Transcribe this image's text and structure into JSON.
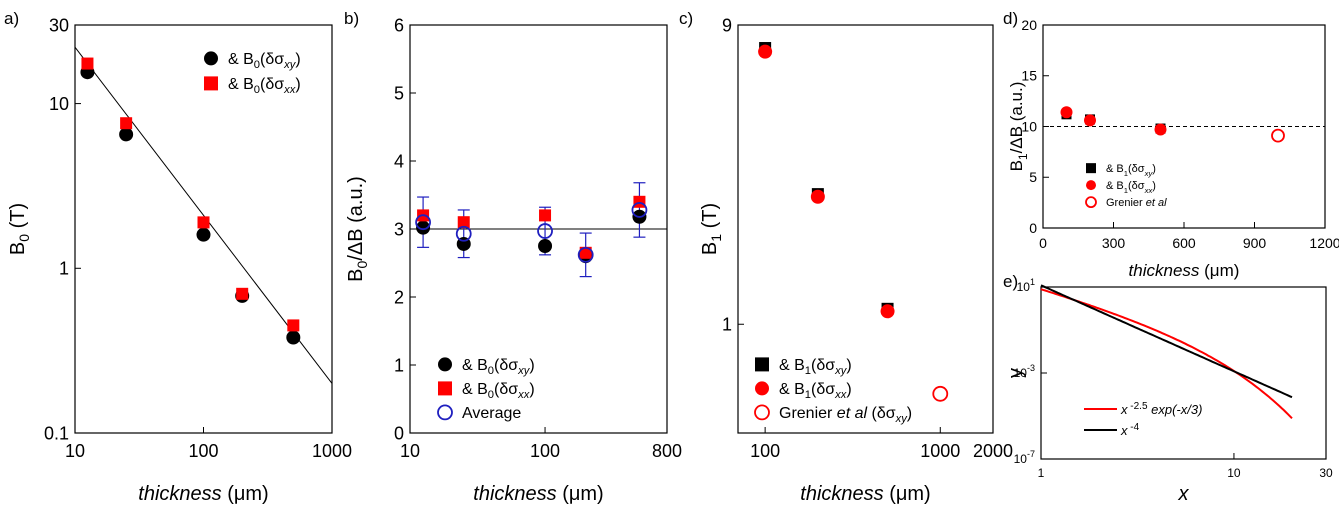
{
  "chart_data": [
    {
      "id": "a",
      "panel_label": "a)",
      "type": "scatter",
      "xscale": "log",
      "yscale": "log",
      "xlim": [
        10,
        1000
      ],
      "ylim": [
        0.1,
        30
      ],
      "xticks": [
        10,
        100,
        1000
      ],
      "xtick_labels": [
        "10",
        "100",
        "1000"
      ],
      "yticks": [
        0.1,
        1,
        10,
        30
      ],
      "ytick_labels": [
        "0.1",
        "1",
        "10",
        "30"
      ],
      "xlabel": {
        "italic": "thickness",
        "rest": " (μm)"
      },
      "ylabel": {
        "main": "B",
        "sub": "0",
        "rest": " (T)"
      },
      "legend_position": "top-right",
      "series": [
        {
          "name": "& B0(δσxy)",
          "legend_prefix": "& B",
          "legend_sub": "0",
          "legend_paren": "(δσ",
          "legend_psub": "xy",
          "marker": "circle",
          "color": "#000000",
          "x": [
            12.5,
            25,
            100,
            200,
            500
          ],
          "y": [
            15.5,
            6.5,
            1.6,
            0.68,
            0.38
          ]
        },
        {
          "name": "& B0(δσxx)",
          "legend_prefix": "& B",
          "legend_sub": "0",
          "legend_paren": "(δσ",
          "legend_psub": "xx",
          "marker": "square",
          "color": "#ff0000",
          "x": [
            12.5,
            25,
            100,
            200,
            500
          ],
          "y": [
            17.5,
            7.6,
            1.9,
            0.7,
            0.45
          ]
        }
      ],
      "fit_line": {
        "x": [
          10,
          1000
        ],
        "y": [
          22,
          0.2
        ],
        "color": "#000000"
      }
    },
    {
      "id": "b",
      "panel_label": "b)",
      "type": "scatter",
      "xscale": "log",
      "yscale": "linear",
      "xlim": [
        10,
        800
      ],
      "ylim": [
        0,
        6
      ],
      "xticks": [
        10,
        100,
        800
      ],
      "xtick_labels": [
        "10",
        "100",
        "800"
      ],
      "yticks": [
        0,
        1,
        2,
        3,
        4,
        5,
        6
      ],
      "ytick_labels": [
        "0",
        "1",
        "2",
        "3",
        "4",
        "5",
        "6"
      ],
      "xlabel": {
        "italic": "thickness",
        "rest": " (μm)"
      },
      "ylabel": {
        "main": "B",
        "sub": "0",
        "rest": "/ΔB (a.u.)"
      },
      "legend_position": "bottom-center",
      "series": [
        {
          "name": "& B0(δσxy)",
          "legend_prefix": "& B",
          "legend_sub": "0",
          "legend_paren": "(δσ",
          "legend_psub": "xy",
          "marker": "circle",
          "color": "#000000",
          "x": [
            12.5,
            25,
            100,
            200,
            500
          ],
          "y": [
            3.02,
            2.78,
            2.75,
            2.6,
            3.18
          ]
        },
        {
          "name": "& B0(δσxx)",
          "legend_prefix": "& B",
          "legend_sub": "0",
          "legend_paren": "(δσ",
          "legend_psub": "xx",
          "marker": "square",
          "color": "#ff0000",
          "x": [
            12.5,
            25,
            100,
            200,
            500
          ],
          "y": [
            3.2,
            3.1,
            3.2,
            2.65,
            3.4
          ]
        },
        {
          "name": "Average",
          "legend_text": "Average",
          "marker": "open-circle",
          "color": "#1f1fbf",
          "x": [
            12.5,
            25,
            100,
            200,
            500
          ],
          "y": [
            3.1,
            2.93,
            2.97,
            2.62,
            3.28
          ],
          "err": [
            0.37,
            0.35,
            0.35,
            0.32,
            0.4
          ]
        }
      ],
      "hline": {
        "y": 3.0,
        "color": "#000000"
      }
    },
    {
      "id": "c",
      "panel_label": "c)",
      "type": "scatter",
      "xscale": "log",
      "yscale": "log",
      "xlim": [
        70,
        2000
      ],
      "ylim": [
        0.45,
        9
      ],
      "xticks": [
        100,
        1000,
        2000
      ],
      "xtick_labels": [
        "100",
        "1000",
        "2000"
      ],
      "yticks": [
        1,
        9
      ],
      "ytick_labels": [
        "1",
        "9"
      ],
      "xlabel": {
        "italic": "thickness",
        "rest": " (μm)"
      },
      "ylabel": {
        "main": "B",
        "sub": "1",
        "rest": " (T)"
      },
      "legend_position": "bottom-left",
      "series": [
        {
          "name": "& B1(δσxy)",
          "legend_prefix": "& B",
          "legend_sub": "1",
          "legend_paren": "(δσ",
          "legend_psub": "xy",
          "marker": "square",
          "color": "#000000",
          "x": [
            100,
            200,
            500
          ],
          "y": [
            7.6,
            2.6,
            1.12
          ]
        },
        {
          "name": "& B1(δσxx)",
          "legend_prefix": "& B",
          "legend_sub": "1",
          "legend_paren": "(δσ",
          "legend_psub": "xx",
          "marker": "circle",
          "color": "#ff0000",
          "x": [
            100,
            200,
            500
          ],
          "y": [
            7.4,
            2.55,
            1.1
          ]
        },
        {
          "name": "Grenier et al (δσxy)",
          "legend_pre": "Grenier ",
          "legend_ital": "et al",
          "legend_post": " (δσ",
          "legend_psub": "xy",
          "marker": "open-circle",
          "color": "#ff0000",
          "x": [
            1000
          ],
          "y": [
            0.6
          ]
        }
      ]
    },
    {
      "id": "d",
      "panel_label": "d)",
      "type": "scatter",
      "xscale": "linear",
      "yscale": "linear",
      "xlim": [
        0,
        1200
      ],
      "ylim": [
        0,
        20
      ],
      "xticks": [
        0,
        300,
        600,
        900,
        1200
      ],
      "xtick_labels": [
        "0",
        "300",
        "600",
        "900",
        "1200"
      ],
      "yticks": [
        0,
        5,
        10,
        15,
        20
      ],
      "ytick_labels": [
        "0",
        "5",
        "10",
        "15",
        "20"
      ],
      "xlabel": {
        "italic": "thickness",
        "rest": " (μm)"
      },
      "ylabel": {
        "main": "B",
        "sub": "1",
        "rest": "/ΔB (a.u.)"
      },
      "legend_position": "bottom-left",
      "series": [
        {
          "name": "& B1(δσxy)",
          "legend_prefix": "& B",
          "legend_sub": "1",
          "legend_paren": "(δσ",
          "legend_psub": "xy",
          "marker": "square",
          "color": "#000000",
          "x": [
            100,
            200,
            500
          ],
          "y": [
            11.2,
            10.7,
            9.8
          ]
        },
        {
          "name": "& B1(δσxx)",
          "legend_prefix": "& B",
          "legend_sub": "1",
          "legend_paren": "(δσ",
          "legend_psub": "xx",
          "marker": "circle",
          "color": "#ff0000",
          "x": [
            100,
            200,
            500
          ],
          "y": [
            11.4,
            10.6,
            9.7
          ]
        },
        {
          "name": "Grenier et al",
          "legend_pre": "Grenier ",
          "legend_ital": "et al",
          "legend_post": "",
          "legend_psub": "",
          "marker": "open-circle",
          "color": "#ff0000",
          "x": [
            1000
          ],
          "y": [
            9.1
          ]
        }
      ],
      "hline": {
        "y": 10,
        "color": "#000000",
        "dashed": true
      }
    },
    {
      "id": "e",
      "panel_label": "e)",
      "type": "line",
      "xscale": "log",
      "yscale": "log",
      "xlim": [
        1,
        30
      ],
      "ylim": [
        1e-07,
        10
      ],
      "xticks": [
        1,
        10,
        30
      ],
      "xtick_labels": [
        "1",
        "10",
        "30"
      ],
      "yticks": [
        10,
        0.001,
        1e-07
      ],
      "ytick_base": "10",
      "ytick_exps": [
        "1",
        "-3",
        "-7"
      ],
      "xlabel": "x",
      "ylabel": "y",
      "legend_position": "bottom-left",
      "series": [
        {
          "name": "x^-2.5 exp(-x/3)",
          "legend_base": "x",
          "legend_sup": " -2.5",
          "legend_rest": " exp(-x/3)",
          "color": "#ff0000",
          "func": "x^-2.5*exp(-x/3)"
        },
        {
          "name": "x^-4",
          "legend_base": "x",
          "legend_sup": " -4",
          "legend_rest": "",
          "color": "#000000",
          "func": "x^-4"
        }
      ]
    }
  ]
}
